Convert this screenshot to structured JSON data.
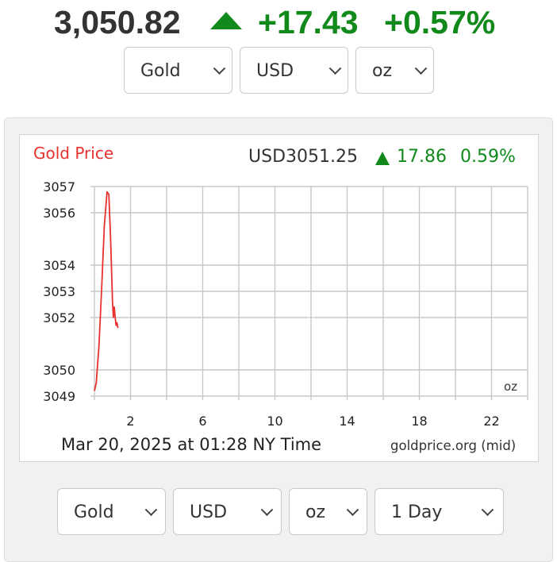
{
  "ticker": {
    "price": "3,050.82",
    "arrow_icon": "up-triangle-icon",
    "change": "+17.43",
    "percent": "+0.57%",
    "color_up": "#118a1b"
  },
  "top_selectors": {
    "metal": "Gold",
    "currency": "USD",
    "unit": "oz"
  },
  "bottom_selectors": {
    "metal": "Gold",
    "currency": "USD",
    "unit": "oz",
    "period": "1 Day"
  },
  "chart_data": {
    "type": "line",
    "title": "Gold Price",
    "title_color": "#e8322e",
    "header_quote": {
      "currency_price": "USD3051.25",
      "arrow_icon": "up-triangle-icon",
      "change": "17.86",
      "percent": "0.59%"
    },
    "timestamp": "Mar 20, 2025 at 01:28 NY Time",
    "source": "goldprice.org (mid)",
    "unit_label": "oz",
    "xlabel": "",
    "ylabel": "",
    "x_ticks": [
      2,
      6,
      10,
      14,
      18,
      22
    ],
    "y_ticks": [
      "3049",
      "3050",
      "3052",
      "3053",
      "3054",
      "3056",
      "3057"
    ],
    "xlim": [
      0,
      24
    ],
    "ylim": [
      3049,
      3057
    ],
    "grid": true,
    "line_color": "#e8322e",
    "series": [
      {
        "x": [
          0.0,
          0.1,
          0.25,
          0.4,
          0.55,
          0.7,
          0.8,
          0.9,
          1.0,
          1.05,
          1.1,
          1.15,
          1.2,
          1.25,
          1.3
        ],
        "values": [
          3049.2,
          3049.5,
          3050.9,
          3053.1,
          3055.5,
          3056.8,
          3056.7,
          3054.9,
          3052.6,
          3052.0,
          3052.4,
          3052.0,
          3051.7,
          3051.8,
          3051.6
        ]
      }
    ]
  }
}
